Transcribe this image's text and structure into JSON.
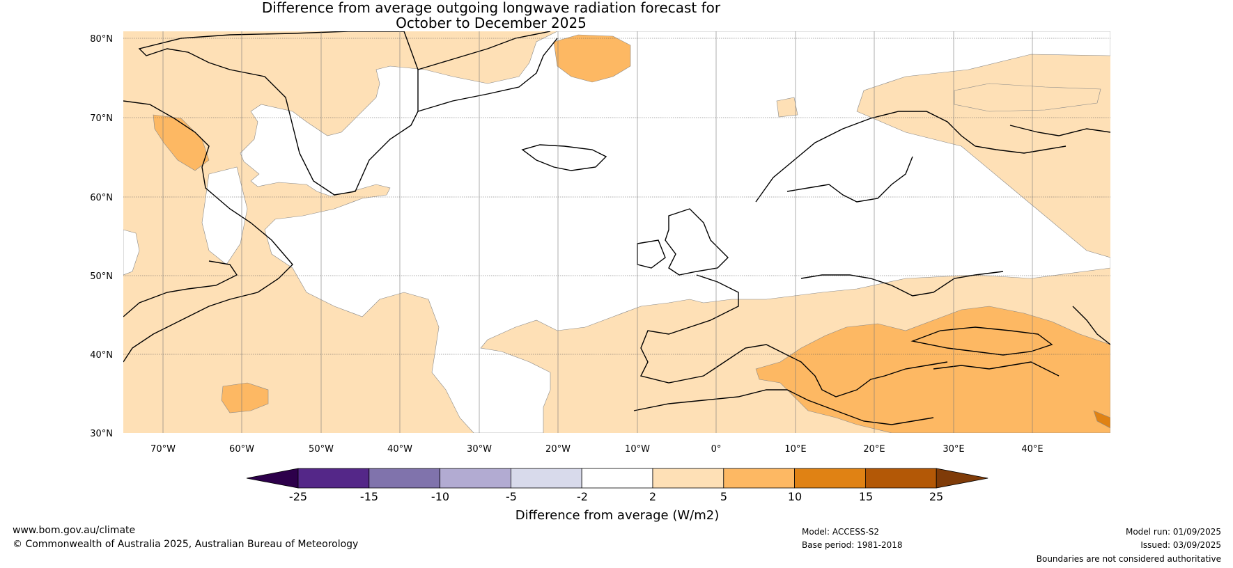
{
  "title": {
    "line1": "Difference from average outgoing longwave radiation forecast for",
    "line2": "October to December 2025"
  },
  "latitude_labels": [
    "80°N",
    "70°N",
    "60°N",
    "50°N",
    "40°N",
    "30°N"
  ],
  "longitude_labels": [
    "70°W",
    "60°W",
    "50°W",
    "40°W",
    "30°W",
    "20°W",
    "10°W",
    "0°",
    "10°E",
    "20°E",
    "30°E",
    "40°E"
  ],
  "colorbar": {
    "ticks": [
      "-25",
      "-15",
      "-10",
      "-5",
      "-2",
      "2",
      "5",
      "10",
      "15",
      "25"
    ],
    "colors": [
      "#2d004b",
      "#542788",
      "#8073ac",
      "#b2abd2",
      "#d8daeb",
      "#ffffff",
      "#fee0b6",
      "#fdb863",
      "#e08214",
      "#b35806",
      "#7f3b08"
    ],
    "label": "Difference from average (W/m2)"
  },
  "footer": {
    "website": "www.bom.gov.au/climate",
    "copyright": "© Commonwealth of Australia 2025, Australian Bureau of Meteorology",
    "model": "Model: ACCESS-S2",
    "base_period": "Base period: 1981-2018",
    "model_run": "Model run: 01/09/2025",
    "issued": "Issued: 03/09/2025",
    "disclaimer": "Boundaries are not considered authoritative"
  }
}
